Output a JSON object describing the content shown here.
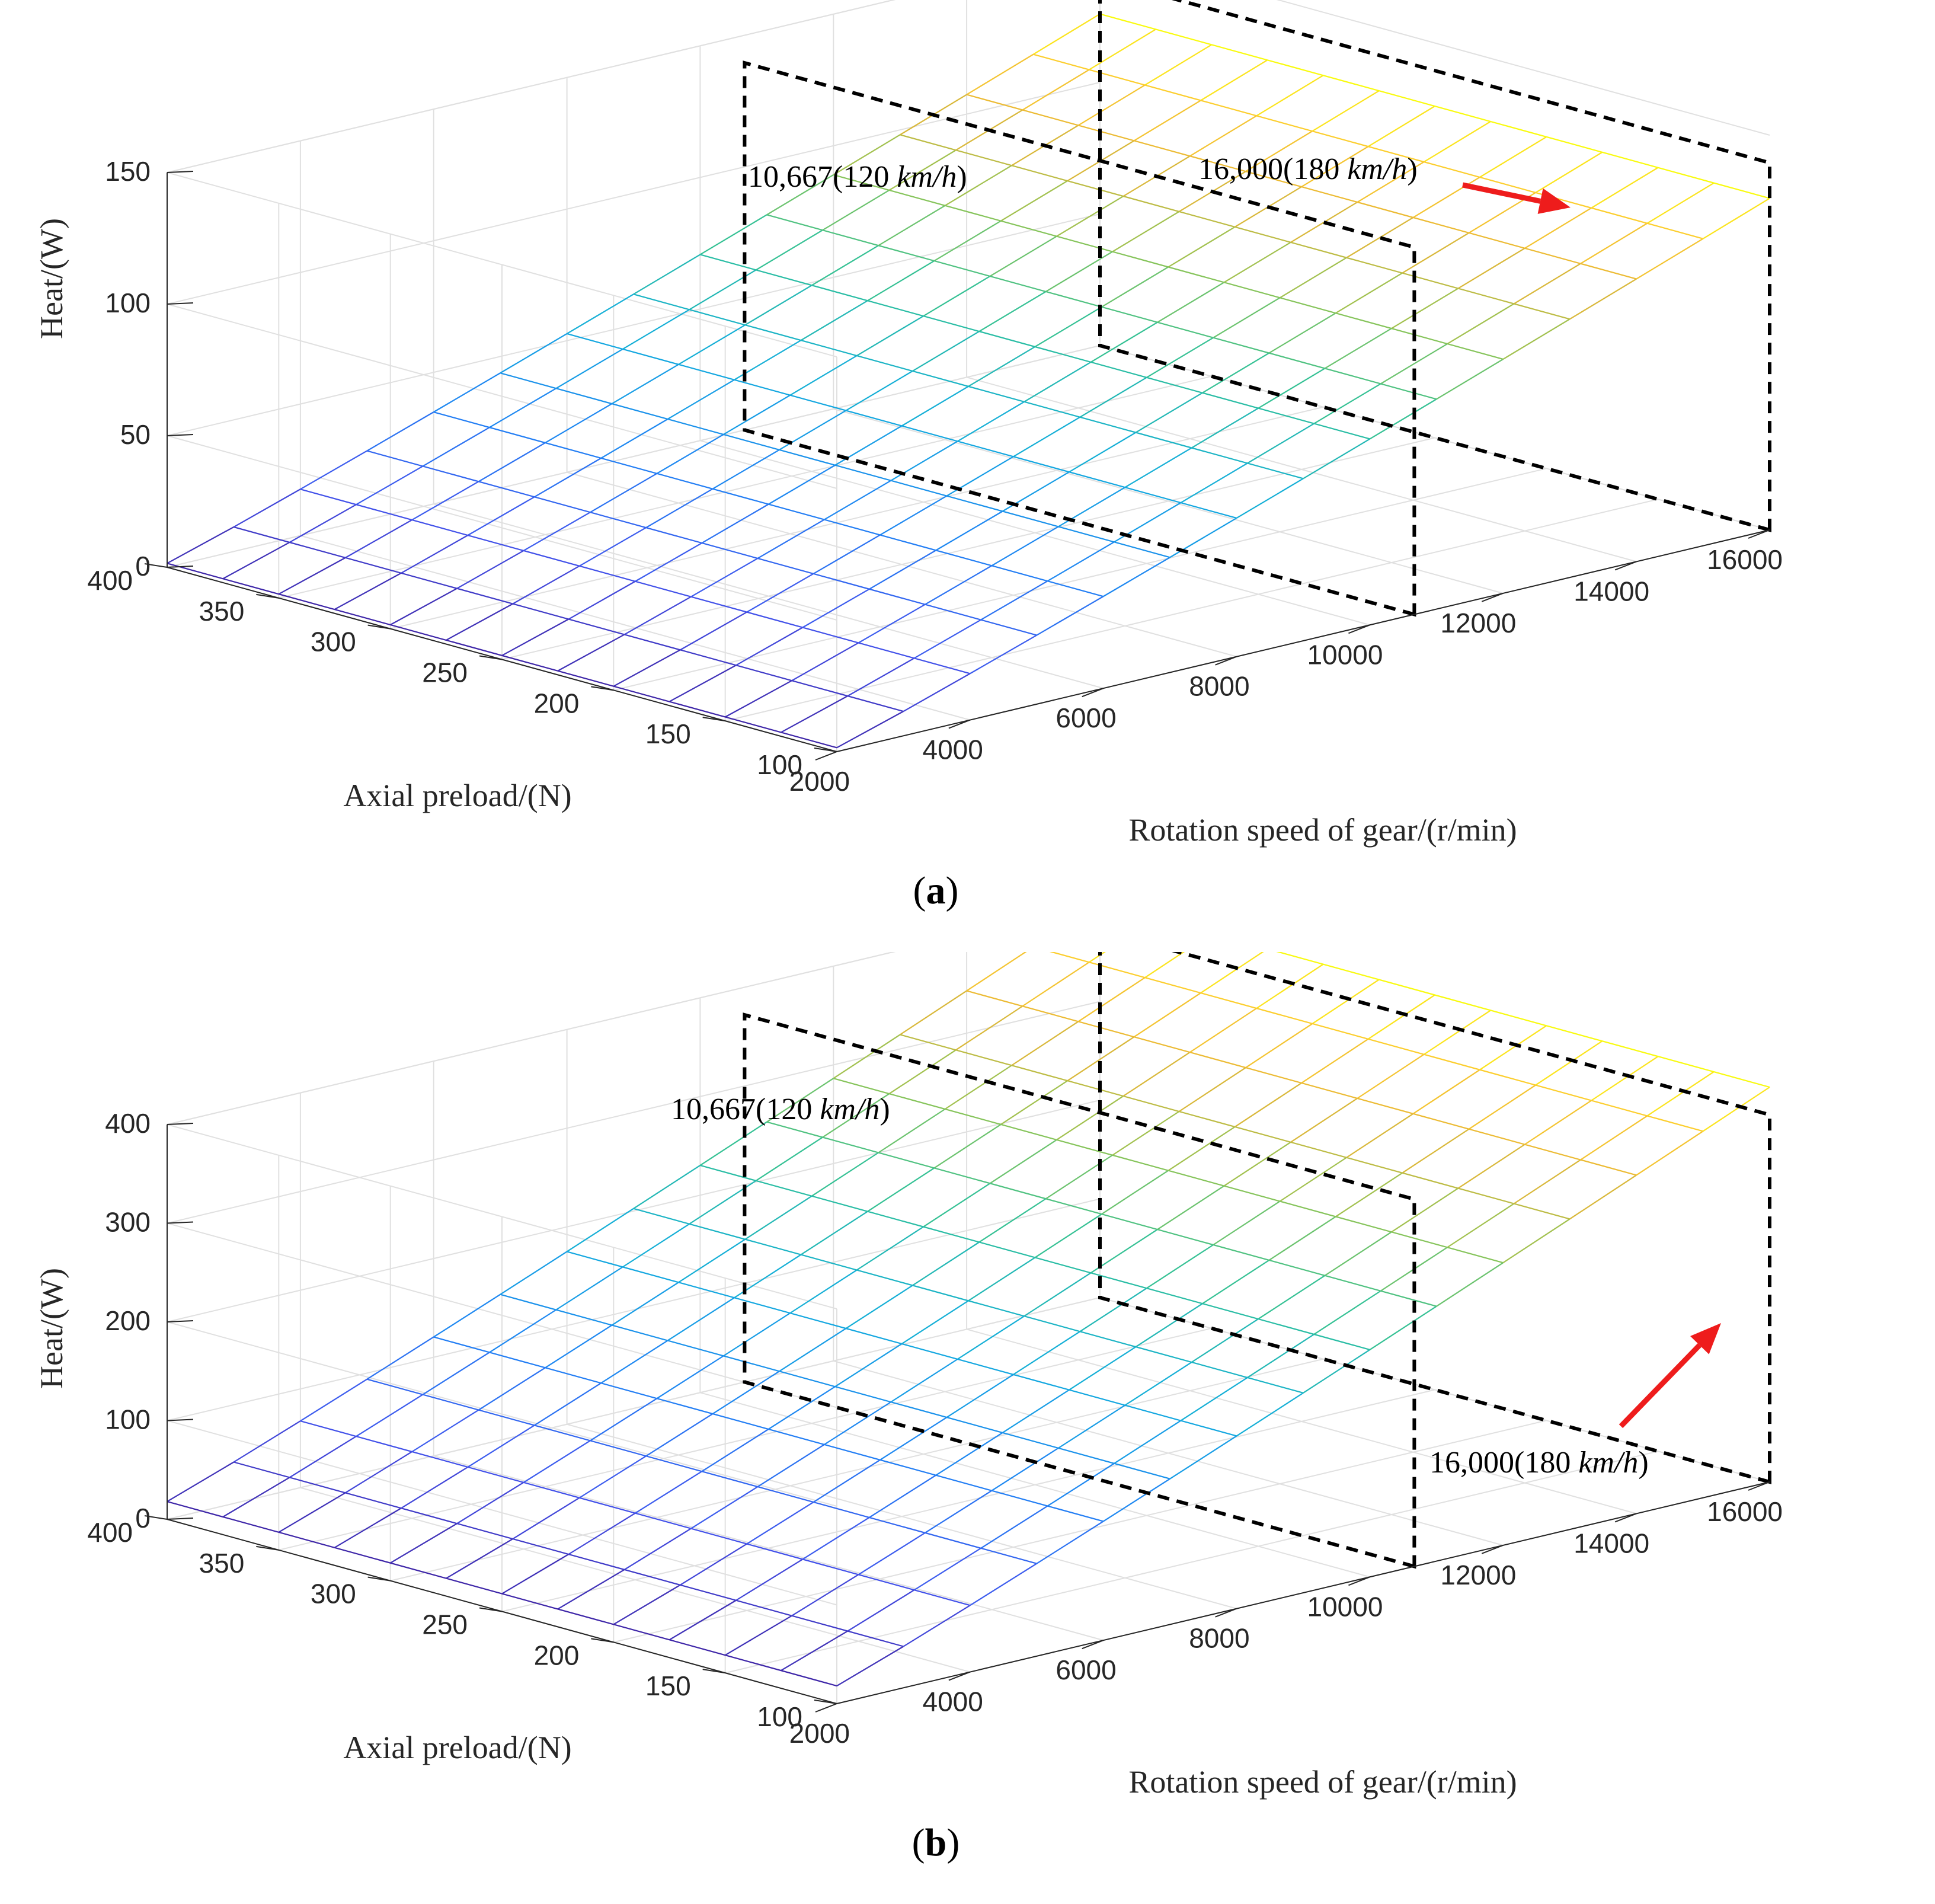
{
  "chart_data": [
    {
      "type": "surface",
      "panel": "a",
      "caption_letter": "a",
      "x": {
        "label": "Rotation speed of gear/(r/min)",
        "range": [
          2000,
          16000
        ],
        "ticks": [
          2000,
          4000,
          6000,
          8000,
          10000,
          12000,
          14000,
          16000
        ]
      },
      "y": {
        "label": "Axial preload/(N)",
        "range": [
          100,
          400
        ],
        "ticks": [
          100,
          150,
          200,
          250,
          300,
          350,
          400
        ]
      },
      "z": {
        "label": "Heat/(W)",
        "range": [
          0,
          150
        ],
        "ticks": [
          0,
          50,
          100,
          150
        ]
      },
      "surface": {
        "speeds": [
          2000,
          3000,
          4000,
          5000,
          6000,
          7000,
          8000,
          9000,
          10000,
          11000,
          12000,
          13000,
          14000,
          15000,
          16000
        ],
        "preloads": [
          100,
          125,
          150,
          175,
          200,
          225,
          250,
          275,
          300,
          325,
          350,
          375,
          400
        ],
        "heat_at_min_speed": 1.5,
        "heat_at_max_speed": 126,
        "dependence": "increases with speed; nearly independent of preload"
      },
      "annotations": [
        {
          "id": "ann-120",
          "prefix": "10,667",
          "value": "120",
          "unit": "km/h",
          "speed": 10667
        },
        {
          "id": "ann-180",
          "prefix": "16,000",
          "value": "180",
          "unit": "km/h",
          "speed": 16000
        }
      ]
    },
    {
      "type": "surface",
      "panel": "b",
      "caption_letter": "b",
      "x": {
        "label": "Rotation speed of gear/(r/min)",
        "range": [
          2000,
          16000
        ],
        "ticks": [
          2000,
          4000,
          6000,
          8000,
          10000,
          12000,
          14000,
          16000
        ]
      },
      "y": {
        "label": "Axial preload/(N)",
        "range": [
          100,
          400
        ],
        "ticks": [
          100,
          150,
          200,
          250,
          300,
          350,
          400
        ]
      },
      "z": {
        "label": "Heat/(W)",
        "range": [
          0,
          400
        ],
        "ticks": [
          0,
          100,
          200,
          300,
          400
        ]
      },
      "surface": {
        "speeds": [
          2000,
          3000,
          4000,
          5000,
          6000,
          7000,
          8000,
          9000,
          10000,
          11000,
          12000,
          13000,
          14000,
          15000,
          16000
        ],
        "preloads": [
          100,
          125,
          150,
          175,
          200,
          225,
          250,
          275,
          300,
          325,
          350,
          375,
          400
        ],
        "heat_at_min_speed": 18,
        "heat_at_max_speed": 400,
        "dependence": "increases with speed; nearly independent of preload"
      },
      "annotations": [
        {
          "id": "ann-120",
          "prefix": "10,667",
          "value": "120",
          "unit": "km/h",
          "speed": 10667
        },
        {
          "id": "ann-180",
          "prefix": "16,000",
          "value": "180",
          "unit": "km/h",
          "speed": 16000
        }
      ]
    }
  ],
  "colors": {
    "grid": "#e0e0e0",
    "axis": "#262626",
    "arrow": "#ee1c1c",
    "dashed": "#000000"
  }
}
